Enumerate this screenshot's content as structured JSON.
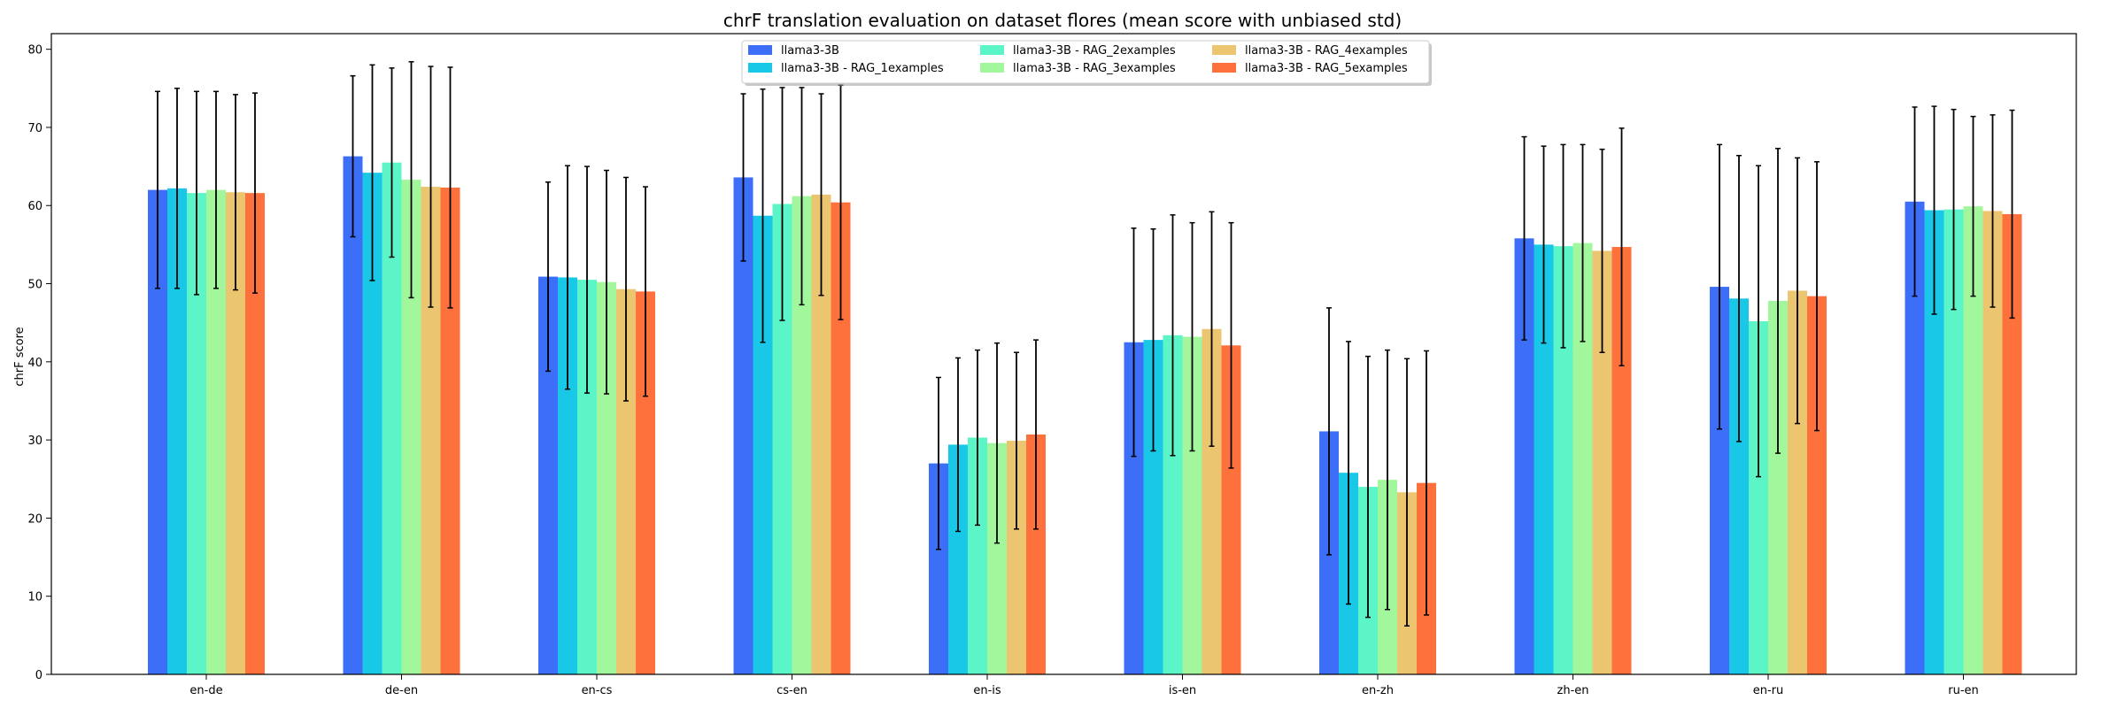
{
  "chart_data": {
    "type": "bar",
    "title": "chrF translation evaluation on dataset flores (mean score with unbiased std)",
    "xlabel": "",
    "ylabel": "chrF score",
    "ylim": [
      0,
      82
    ],
    "yticks": [
      0,
      10,
      20,
      30,
      40,
      50,
      60,
      70,
      80
    ],
    "grid": false,
    "legend_position": "top-center",
    "legend_columns": 3,
    "categories": [
      "en-de",
      "de-en",
      "en-cs",
      "cs-en",
      "en-is",
      "is-en",
      "en-zh",
      "zh-en",
      "en-ru",
      "ru-en"
    ],
    "series": [
      {
        "name": "llama3-3B",
        "color": "#3c6ef7",
        "values": [
          62.0,
          66.3,
          50.9,
          63.6,
          27.0,
          42.5,
          31.1,
          55.8,
          49.6,
          60.5
        ],
        "errors": [
          12.6,
          10.3,
          12.1,
          10.7,
          11.0,
          14.6,
          15.8,
          13.0,
          18.2,
          12.1
        ]
      },
      {
        "name": "llama3-3B - RAG_1examples",
        "color": "#18c8e6",
        "values": [
          62.2,
          64.2,
          50.8,
          58.7,
          29.4,
          42.8,
          25.8,
          55.0,
          48.1,
          59.4
        ],
        "errors": [
          12.8,
          13.8,
          14.3,
          16.2,
          11.1,
          14.2,
          16.8,
          12.6,
          18.3,
          13.3
        ]
      },
      {
        "name": "llama3-3B - RAG_2examples",
        "color": "#5cf5c8",
        "values": [
          61.6,
          65.5,
          50.5,
          60.2,
          30.3,
          43.4,
          24.0,
          54.8,
          45.2,
          59.5
        ],
        "errors": [
          13.0,
          12.1,
          14.5,
          14.9,
          11.2,
          15.4,
          16.7,
          13.0,
          19.9,
          12.8
        ]
      },
      {
        "name": "llama3-3B - RAG_3examples",
        "color": "#a2f79c",
        "values": [
          62.0,
          63.3,
          50.2,
          61.2,
          29.6,
          43.2,
          24.9,
          55.2,
          47.8,
          59.9
        ],
        "errors": [
          12.6,
          15.1,
          14.3,
          13.9,
          12.8,
          14.6,
          16.6,
          12.6,
          19.5,
          11.5
        ]
      },
      {
        "name": "llama3-3B - RAG_4examples",
        "color": "#ebc56f",
        "values": [
          61.7,
          62.4,
          49.3,
          61.4,
          29.9,
          44.2,
          23.3,
          54.2,
          49.1,
          59.3
        ],
        "errors": [
          12.5,
          15.4,
          14.3,
          12.9,
          11.3,
          15.0,
          17.1,
          13.0,
          17.0,
          12.3
        ]
      },
      {
        "name": "llama3-3B - RAG_5examples",
        "color": "#fe713d",
        "values": [
          61.6,
          62.3,
          49.0,
          60.4,
          30.7,
          42.1,
          24.5,
          54.7,
          48.4,
          58.9
        ],
        "errors": [
          12.8,
          15.4,
          13.4,
          15.0,
          12.1,
          15.7,
          16.9,
          15.2,
          17.2,
          13.3
        ]
      }
    ]
  }
}
